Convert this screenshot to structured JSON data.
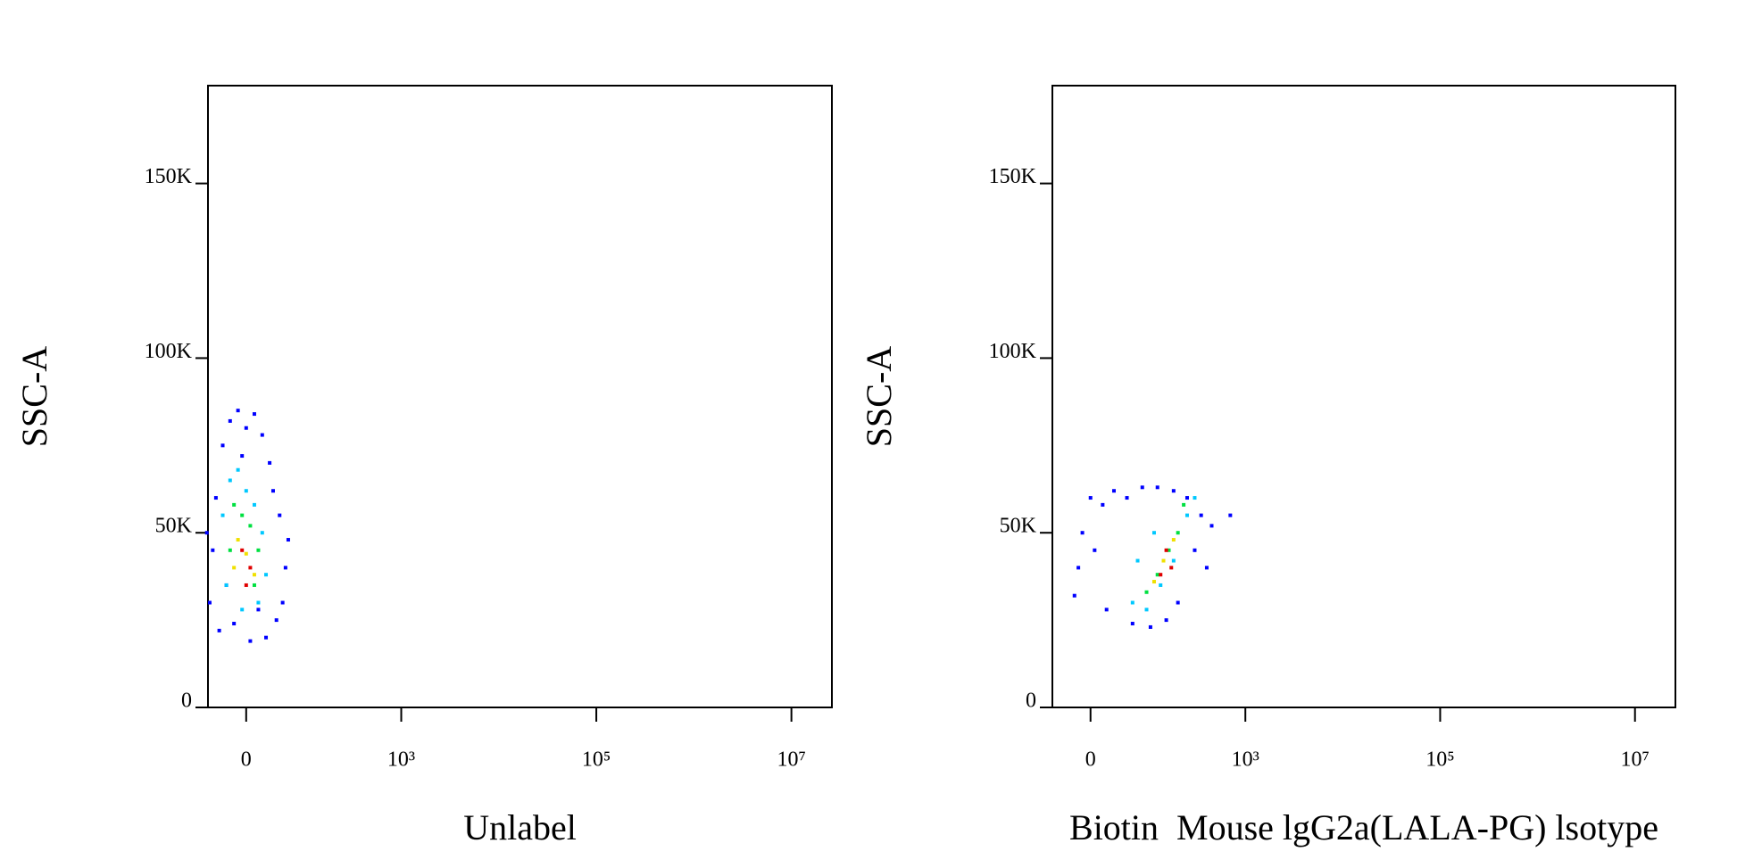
{
  "chart_data": [
    {
      "type": "scatter",
      "xlabel": "Unlabel",
      "ylabel": "SSC-A",
      "xscale": "biexponential",
      "xlim": [
        -53,
        26000000
      ],
      "ylim": [
        0,
        178000
      ],
      "xticks": [
        0,
        {
          "value": 1000,
          "label": "10³"
        },
        {
          "value": 100000,
          "label": "10⁵"
        },
        {
          "value": 10000000,
          "label": "10⁷"
        }
      ],
      "yticks": [
        0,
        {
          "value": 50000,
          "label": "50K"
        },
        {
          "value": 100000,
          "label": "100K"
        },
        {
          "value": 150000,
          "label": "150K"
        }
      ],
      "series": [
        {
          "color": "#0000ff",
          "x": [
            -50,
            -40,
            -45,
            -30,
            -20,
            -10,
            0,
            10,
            20,
            30,
            45,
            55,
            50,
            40,
            -55,
            -35,
            25,
            5,
            -15,
            35,
            -25,
            15,
            60,
            -5
          ],
          "values": [
            30000,
            60000,
            45000,
            75000,
            82000,
            85000,
            80000,
            84000,
            78000,
            70000,
            55000,
            40000,
            30000,
            25000,
            50000,
            22000,
            20000,
            19000,
            24000,
            62000,
            35000,
            28000,
            48000,
            72000
          ]
        },
        {
          "color": "#00c8ff",
          "x": [
            -30,
            -20,
            -10,
            0,
            10,
            20,
            25,
            -25,
            15,
            -5
          ],
          "values": [
            55000,
            65000,
            68000,
            62000,
            58000,
            50000,
            38000,
            35000,
            30000,
            28000
          ]
        },
        {
          "color": "#00e040",
          "x": [
            -15,
            -5,
            5,
            15,
            -20,
            10
          ],
          "values": [
            58000,
            55000,
            52000,
            45000,
            45000,
            35000
          ]
        },
        {
          "color": "#f0e000",
          "x": [
            -10,
            0,
            10,
            -15
          ],
          "values": [
            48000,
            44000,
            38000,
            40000
          ]
        },
        {
          "color": "#e00000",
          "x": [
            -5,
            5,
            0
          ],
          "values": [
            45000,
            40000,
            35000
          ]
        }
      ]
    },
    {
      "type": "scatter",
      "xlabel": "Biotin  Mouse lgG2a(LALA-PG) lsotype",
      "ylabel": "SSC-A",
      "xscale": "biexponential",
      "xlim": [
        -53,
        26000000
      ],
      "ylim": [
        0,
        178000
      ],
      "xticks": [
        0,
        {
          "value": 1000,
          "label": "10³"
        },
        {
          "value": 100000,
          "label": "10⁵"
        },
        {
          "value": 10000000,
          "label": "10⁷"
        }
      ],
      "yticks": [
        0,
        {
          "value": 50000,
          "label": "50K"
        },
        {
          "value": 100000,
          "label": "100K"
        },
        {
          "value": 150000,
          "label": "150K"
        }
      ],
      "series": [
        {
          "color": "#0000ff",
          "x": [
            -20,
            -10,
            0,
            15,
            30,
            50,
            80,
            120,
            180,
            250,
            350,
            450,
            700,
            400,
            150,
            60,
            20,
            -15,
            100,
            300,
            5,
            200
          ],
          "values": [
            32000,
            50000,
            60000,
            58000,
            62000,
            60000,
            63000,
            63000,
            62000,
            60000,
            55000,
            52000,
            55000,
            40000,
            25000,
            24000,
            28000,
            40000,
            23000,
            45000,
            45000,
            30000
          ]
        },
        {
          "color": "#00c8ff",
          "x": [
            60,
            90,
            130,
            180,
            250,
            300,
            110,
            70
          ],
          "values": [
            30000,
            28000,
            35000,
            42000,
            55000,
            60000,
            50000,
            42000
          ]
        },
        {
          "color": "#00e040",
          "x": [
            120,
            160,
            200,
            230,
            90
          ],
          "values": [
            38000,
            45000,
            50000,
            58000,
            33000
          ]
        },
        {
          "color": "#f0e000",
          "x": [
            140,
            180,
            110
          ],
          "values": [
            42000,
            48000,
            36000
          ]
        },
        {
          "color": "#e00000",
          "x": [
            150,
            170,
            130
          ],
          "values": [
            45000,
            40000,
            38000
          ]
        }
      ]
    }
  ]
}
